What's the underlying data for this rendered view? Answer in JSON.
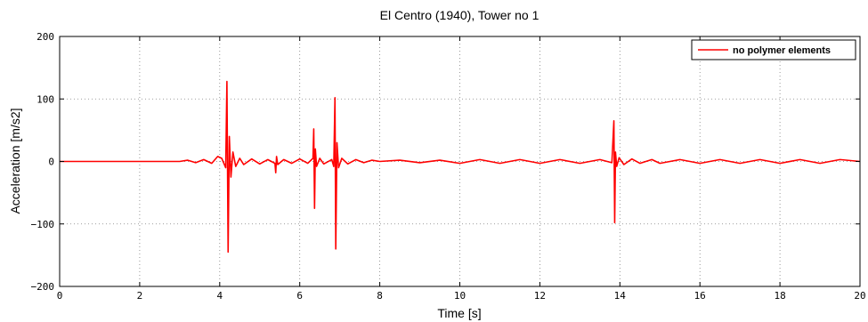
{
  "chart_data": {
    "type": "line",
    "title": "El Centro (1940), Tower no 1",
    "xlabel": "Time [s]",
    "ylabel": "Acceleration [m/s2]",
    "xlim": [
      0,
      20
    ],
    "ylim": [
      -200,
      200
    ],
    "xticks": [
      0,
      2,
      4,
      6,
      8,
      10,
      12,
      14,
      16,
      18,
      20
    ],
    "yticks": [
      -200,
      -100,
      0,
      100,
      200
    ],
    "xtick_labels": [
      "0",
      "2",
      "4",
      "6",
      "8",
      "10",
      "12",
      "14",
      "16",
      "18",
      "20"
    ],
    "ytick_labels": [
      "−200",
      "−100",
      "0",
      "100",
      "200"
    ],
    "grid": true,
    "legend_position": "top-right",
    "series": [
      {
        "name": "no polymer elements",
        "color": "#ff0000",
        "x": [
          0,
          3.0,
          3.2,
          3.4,
          3.6,
          3.8,
          3.95,
          4.05,
          4.15,
          4.18,
          4.21,
          4.24,
          4.28,
          4.33,
          4.4,
          4.5,
          4.6,
          4.8,
          5.0,
          5.2,
          5.38,
          5.4,
          5.42,
          5.45,
          5.6,
          5.8,
          6.0,
          6.2,
          6.33,
          6.35,
          6.37,
          6.39,
          6.42,
          6.5,
          6.6,
          6.8,
          6.85,
          6.88,
          6.9,
          6.93,
          6.97,
          7.05,
          7.2,
          7.4,
          7.6,
          7.8,
          8.0,
          8.5,
          9.0,
          9.5,
          10.0,
          10.5,
          11.0,
          11.5,
          12.0,
          12.5,
          13.0,
          13.5,
          13.8,
          13.85,
          13.87,
          13.89,
          13.92,
          13.98,
          14.1,
          14.3,
          14.5,
          14.8,
          15.0,
          15.5,
          16.0,
          16.5,
          17.0,
          17.5,
          18.0,
          18.5,
          19.0,
          19.5,
          20.0
        ],
        "y": [
          0,
          0,
          2,
          -2,
          3,
          -3,
          8,
          5,
          -10,
          128,
          -145,
          40,
          -25,
          15,
          -8,
          5,
          -5,
          4,
          -4,
          3,
          -3,
          -18,
          8,
          -5,
          3,
          -3,
          4,
          -3,
          5,
          52,
          -75,
          20,
          -8,
          5,
          -4,
          3,
          -8,
          102,
          -140,
          30,
          -10,
          5,
          -4,
          3,
          -2,
          2,
          0,
          2,
          -2,
          2,
          -3,
          3,
          -3,
          3,
          -3,
          3,
          -3,
          3,
          -2,
          65,
          -98,
          15,
          -8,
          6,
          -5,
          4,
          -3,
          3,
          -3,
          3,
          -3,
          3,
          -3,
          3,
          -3,
          3,
          -3,
          3,
          0
        ]
      }
    ]
  }
}
